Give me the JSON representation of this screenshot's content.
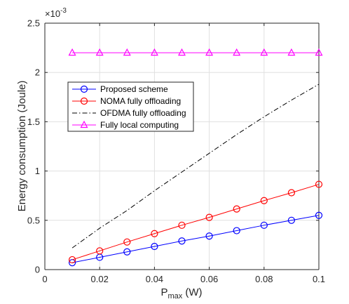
{
  "chart_data": {
    "type": "line",
    "xlabel_main": "P",
    "xlabel_sub": "max",
    "xlabel_unit": " (W)",
    "ylabel": "Energy consumption (Joule)",
    "exponent_base": "×10",
    "exponent_power": "-3",
    "xlim": [
      0,
      0.1
    ],
    "ylim": [
      0,
      2.5
    ],
    "xticks": [
      "0",
      "0.02",
      "0.04",
      "0.06",
      "0.08",
      "0.1"
    ],
    "yticks": [
      "0",
      "0.5",
      "1",
      "1.5",
      "2",
      "2.5"
    ],
    "grid": true,
    "legend_position": "upper-left",
    "x": [
      0.01,
      0.02,
      0.03,
      0.04,
      0.05,
      0.06,
      0.07,
      0.08,
      0.09,
      0.1
    ],
    "series": [
      {
        "name": "Proposed scheme",
        "color": "#0000ff",
        "style": "solid",
        "marker": "circle",
        "values": [
          0.07,
          0.125,
          0.18,
          0.235,
          0.29,
          0.34,
          0.395,
          0.45,
          0.5,
          0.55
        ]
      },
      {
        "name": "NOMA fully offloading",
        "color": "#ff0000",
        "style": "solid",
        "marker": "circle",
        "values": [
          0.1,
          0.19,
          0.28,
          0.365,
          0.45,
          0.53,
          0.615,
          0.7,
          0.78,
          0.865
        ]
      },
      {
        "name": "OFDMA fully offloading",
        "color": "#000000",
        "style": "dashdot",
        "marker": "none",
        "values": [
          0.22,
          0.42,
          0.6,
          0.8,
          0.99,
          1.18,
          1.37,
          1.55,
          1.72,
          1.88
        ]
      },
      {
        "name": "Fully local computing",
        "color": "#ff00ff",
        "style": "solid",
        "marker": "triangle",
        "values": [
          2.2,
          2.2,
          2.2,
          2.2,
          2.2,
          2.2,
          2.2,
          2.2,
          2.2,
          2.2
        ]
      }
    ]
  }
}
